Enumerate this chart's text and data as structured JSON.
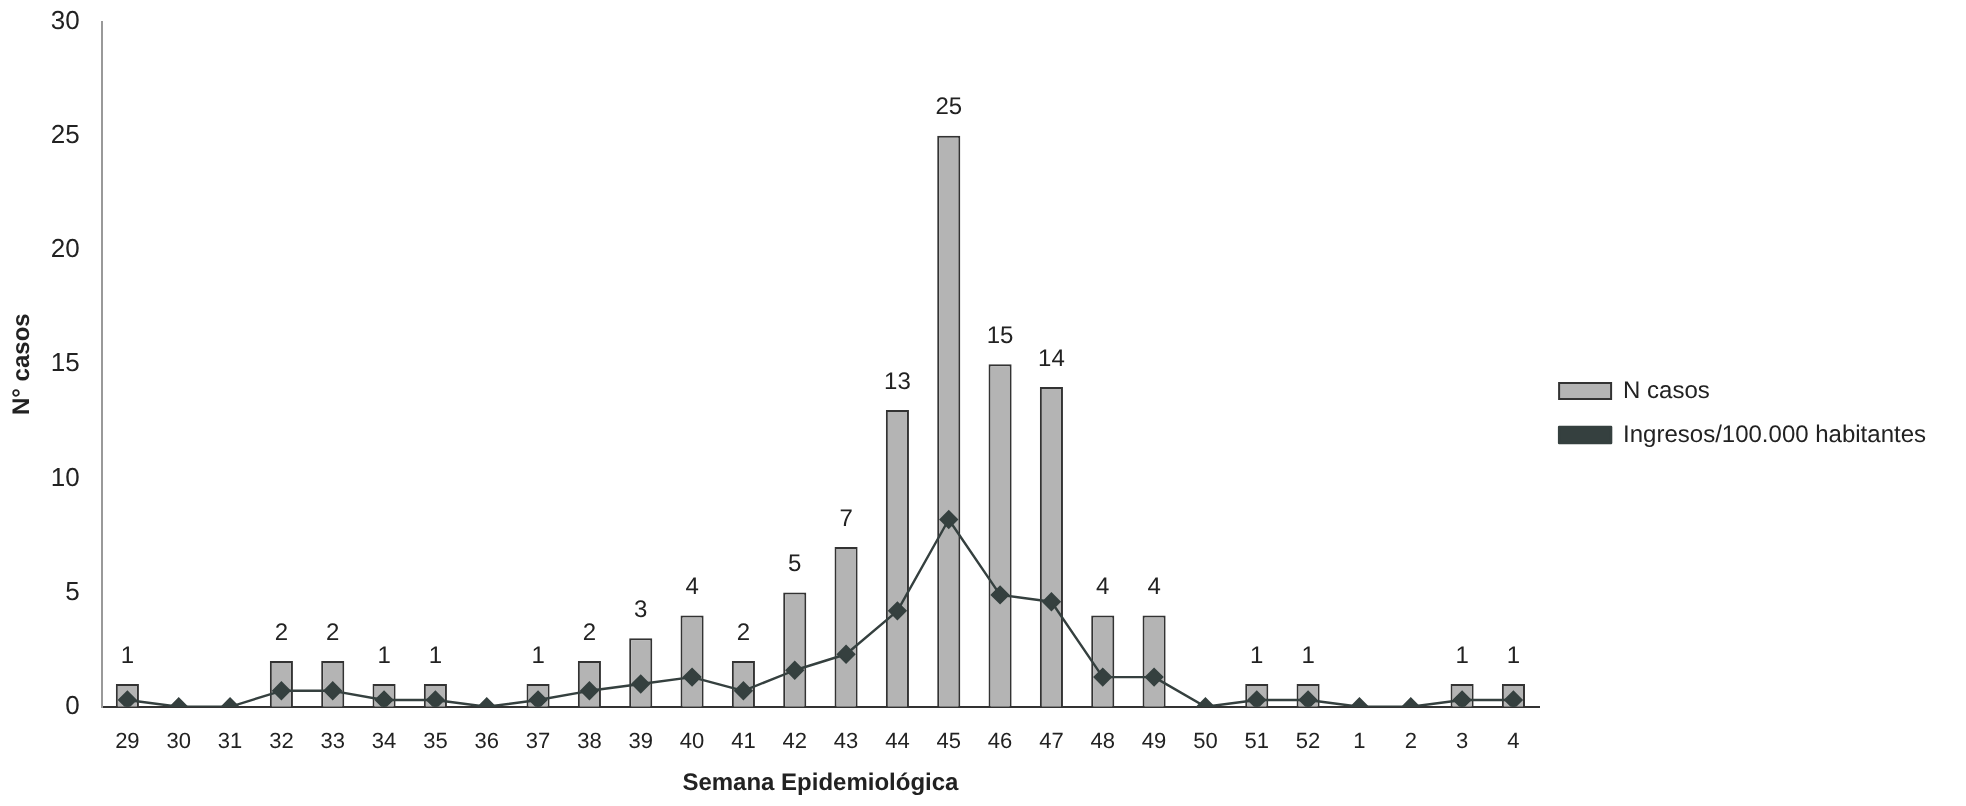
{
  "chart_data": {
    "type": "bar",
    "xlabel": "Semana Epidemiológica",
    "ylabel": "N° casos",
    "categories": [
      "29",
      "30",
      "31",
      "32",
      "33",
      "34",
      "35",
      "36",
      "37",
      "38",
      "39",
      "40",
      "41",
      "42",
      "43",
      "44",
      "45",
      "46",
      "47",
      "48",
      "49",
      "50",
      "51",
      "52",
      "1",
      "2",
      "3",
      "4"
    ],
    "series": [
      {
        "name": "N casos",
        "color": "#b4b4b4",
        "values": [
          1,
          0,
          0,
          2,
          2,
          1,
          1,
          0,
          1,
          2,
          3,
          4,
          2,
          5,
          7,
          13,
          25,
          15,
          14,
          4,
          4,
          0,
          1,
          1,
          0,
          0,
          1,
          1
        ],
        "value_labels": [
          "1",
          null,
          null,
          "2",
          "2",
          "1",
          "1",
          null,
          "1",
          "2",
          "3",
          "4",
          "2",
          "5",
          "7",
          "13",
          "25",
          "15",
          "14",
          "4",
          "4",
          null,
          "1",
          "1",
          null,
          null,
          "1",
          "1"
        ]
      },
      {
        "name": "Ingresos/100.000 habitantes",
        "type": "line",
        "color": "#35403f",
        "marker": "diamond",
        "values": [
          0.3,
          0,
          0,
          0.7,
          0.7,
          0.3,
          0.3,
          0,
          0.3,
          0.7,
          1,
          1.3,
          0.7,
          1.6,
          2.3,
          4.2,
          8.2,
          4.9,
          4.6,
          1.3,
          1.3,
          0,
          0.3,
          0.3,
          0,
          0,
          0.3,
          0.3
        ]
      }
    ],
    "ylim": [
      0,
      30
    ],
    "yticks": [
      0,
      5,
      10,
      15,
      20,
      25,
      30
    ],
    "grid": false,
    "legend": "right"
  }
}
